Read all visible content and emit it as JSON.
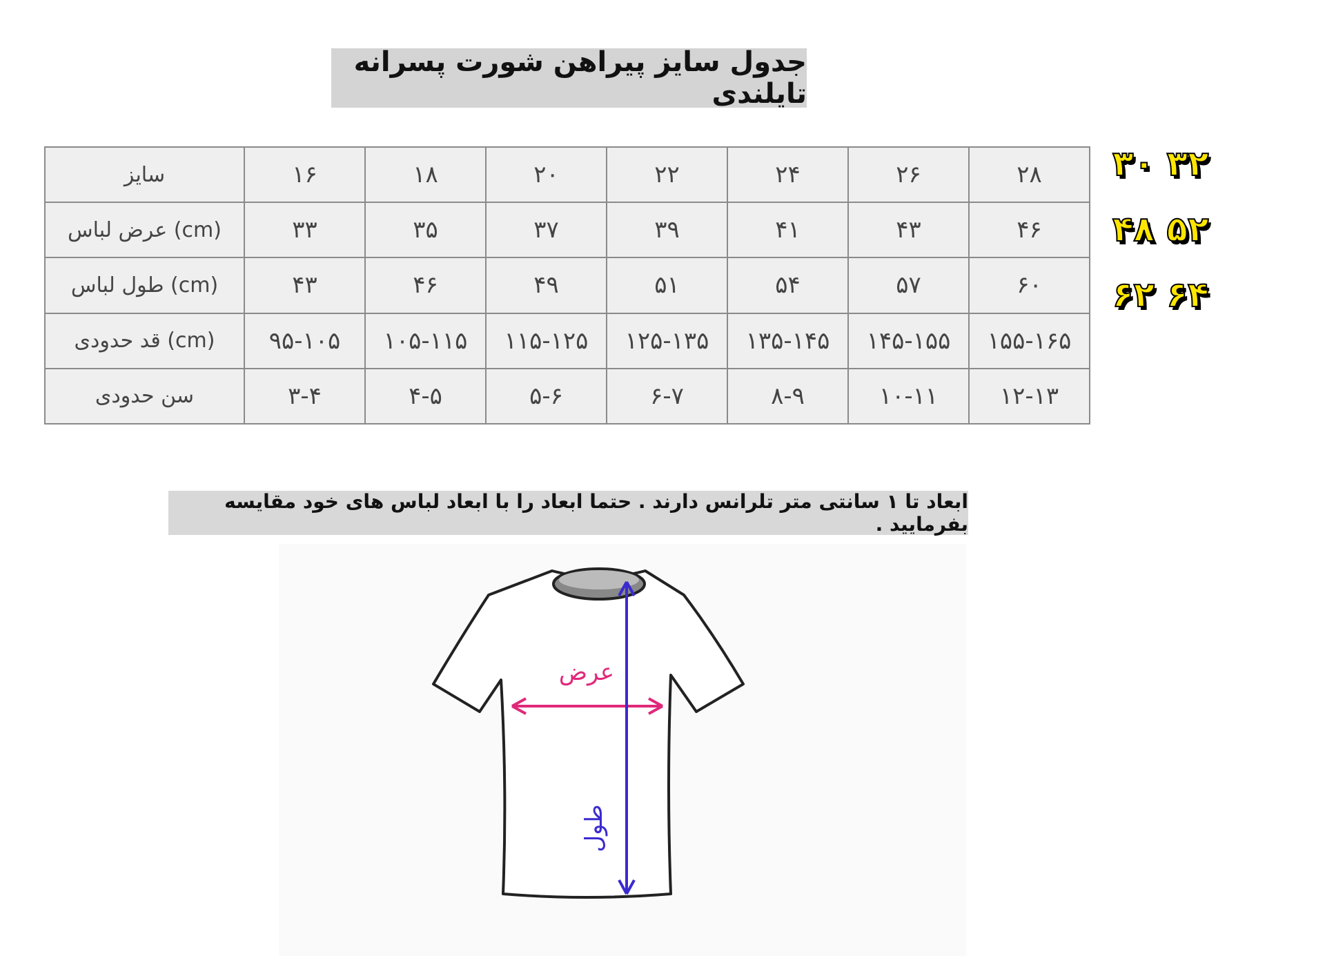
{
  "title": "جدول سایز پیراهن شورت پسرانه تایلندی",
  "table": {
    "rows": [
      {
        "label": "سایز",
        "cells": [
          "۱۶",
          "۱۸",
          "۲۰",
          "۲۲",
          "۲۴",
          "۲۶",
          "۲۸"
        ]
      },
      {
        "label": "(cm) عرض لباس",
        "cells": [
          "۳۳",
          "۳۵",
          "۳۷",
          "۳۹",
          "۴۱",
          "۴۳",
          "۴۶"
        ]
      },
      {
        "label": "(cm) طول لباس",
        "cells": [
          "۴۳",
          "۴۶",
          "۴۹",
          "۵۱",
          "۵۴",
          "۵۷",
          "۶۰"
        ]
      },
      {
        "label": "(cm) قد حدودی",
        "cells": [
          "۹۵-۱۰۵",
          "۱۰۵-۱۱۵",
          "۱۱۵-۱۲۵",
          "۱۲۵-۱۳۵",
          "۱۳۵-۱۴۵",
          "۱۴۵-۱۵۵",
          "۱۵۵-۱۶۵"
        ]
      },
      {
        "label": "سن حدودی",
        "cells": [
          "۳-۴",
          "۴-۵",
          "۵-۶",
          "۶-۷",
          "۸-۹",
          "۱۰-۱۱",
          "۱۲-۱۳"
        ]
      }
    ]
  },
  "extra_sizes": [
    "۳۰ ۳۲",
    "۴۸ ۵۲",
    "۶۲ ۶۴"
  ],
  "note": "ابعاد تا ۱ سانتی متر تلرانس دارند . حتما ابعاد را با ابعاد لباس های خود مقایسه بفرمایید .",
  "diagram": {
    "width_label": "عرض",
    "length_label": "طول",
    "width_color": "#e0287a",
    "length_color": "#3a2bd0"
  }
}
